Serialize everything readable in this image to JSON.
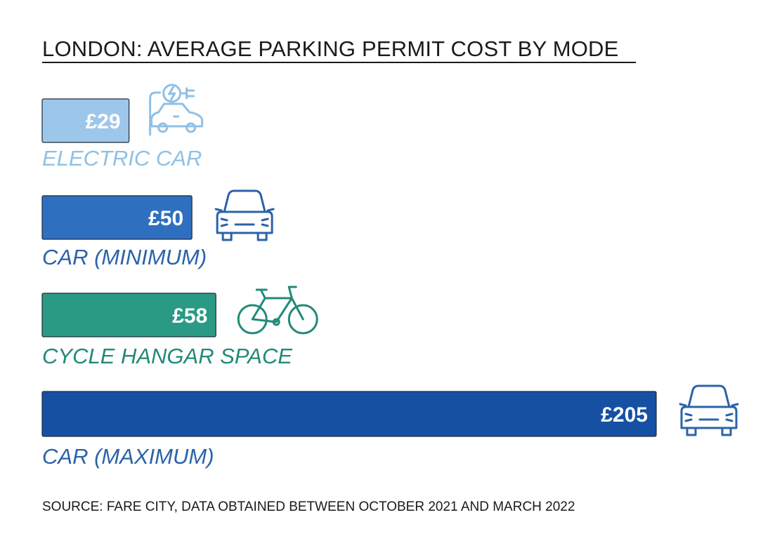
{
  "chart_data": {
    "type": "bar",
    "orientation": "horizontal",
    "title": "LONDON: AVERAGE PARKING PERMIT COST BY MODE",
    "categories": [
      "ELECTRIC CAR",
      "CAR (MINIMUM)",
      "CYCLE HANGAR SPACE",
      "CAR (MAXIMUM)"
    ],
    "values": [
      29,
      50,
      58,
      205
    ],
    "value_labels": [
      "£29",
      "£50",
      "£58",
      "£205"
    ],
    "icons": [
      "electric-car-icon",
      "car-icon",
      "bicycle-icon",
      "car-icon"
    ],
    "colors": {
      "electric_car_bar": "#9dc7ea",
      "electric_car_label": "#8fc1e6",
      "car_bar": "#2f6fbf",
      "car_label": "#2b63a9",
      "cycle_bar": "#2a9a84",
      "cycle_label": "#228a78",
      "car_max_bar": "#1550a3",
      "car_max_label": "#2b63a9"
    },
    "grid": false,
    "legend": "none"
  },
  "source": "SOURCE: FARE CITY, DATA OBTAINED BETWEEN OCTOBER 2021 AND MARCH 2022"
}
